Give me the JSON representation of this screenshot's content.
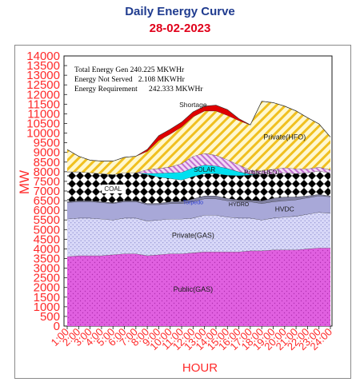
{
  "header": {
    "title": "Daily Energy Curve",
    "date": "28-02-2023"
  },
  "summary": [
    "Total Energy Gen 240.225 MKWHr",
    "Energy Not Served   2.108 MKWHr",
    "Energy Requirement      242.333 MKWHr"
  ],
  "chart_data": {
    "type": "area",
    "stacked": true,
    "xlabel": "HOUR",
    "ylabel": "MW",
    "ylim": [
      0,
      14000
    ],
    "yticks": [
      0,
      500,
      1000,
      1500,
      2000,
      2500,
      3000,
      3500,
      4000,
      4500,
      5000,
      5500,
      6000,
      6500,
      7000,
      7500,
      8000,
      8500,
      9000,
      9500,
      10000,
      10500,
      11000,
      11500,
      12000,
      12500,
      13000,
      13500,
      14000
    ],
    "grid": false,
    "x": [
      "1:00",
      "2:00",
      "3:00",
      "4:00",
      "5:00",
      "6:00",
      "7:00",
      "8:00",
      "9:00",
      "10:00",
      "11:00",
      "12:00",
      "13:00",
      "14:00",
      "15:00",
      "16:00",
      "17:00",
      "18:00",
      "19:00",
      "20:00",
      "21:00",
      "22:00",
      "23:00",
      "24:00"
    ],
    "series": [
      {
        "name": "Public(GAS)",
        "fill": "#e060e0",
        "pattern": "dots",
        "values": [
          3600,
          3650,
          3650,
          3650,
          3700,
          3750,
          3750,
          3650,
          3700,
          3750,
          3750,
          3800,
          3850,
          3850,
          3850,
          3850,
          3900,
          3900,
          3950,
          3950,
          3950,
          4000,
          4050,
          4050
        ]
      },
      {
        "name": "Private(GAS)",
        "fill": "#c8c8f8",
        "pattern": "dots",
        "values": [
          1950,
          1950,
          1950,
          1900,
          1800,
          1850,
          1850,
          1800,
          1800,
          1800,
          1800,
          1800,
          1900,
          1900,
          1800,
          1750,
          1700,
          1600,
          1650,
          1700,
          1750,
          1800,
          1850,
          1800
        ]
      },
      {
        "name": "HVDC",
        "fill": "#a8a8d8",
        "pattern": "solid",
        "values": [
          850,
          850,
          850,
          850,
          850,
          850,
          850,
          850,
          800,
          800,
          800,
          850,
          850,
          850,
          850,
          850,
          850,
          850,
          850,
          850,
          850,
          850,
          850,
          850
        ]
      },
      {
        "name": "HYDRO",
        "fill": "#7f7fa0",
        "pattern": "solid",
        "values": [
          50,
          50,
          50,
          50,
          50,
          50,
          50,
          60,
          70,
          100,
          120,
          150,
          150,
          150,
          120,
          100,
          80,
          150,
          180,
          200,
          150,
          100,
          80,
          50
        ]
      },
      {
        "name": "Torpedo",
        "fill": "#ffffff",
        "pattern": "solid",
        "values": [
          0,
          0,
          0,
          0,
          0,
          0,
          0,
          0,
          0,
          0,
          0,
          0,
          0,
          0,
          0,
          0,
          0,
          0,
          0,
          0,
          0,
          0,
          0,
          0
        ]
      },
      {
        "name": "COAL",
        "fill": "#000000",
        "pattern": "diamonds",
        "values": [
          1550,
          1500,
          1450,
          1450,
          1450,
          1450,
          1450,
          1500,
          1350,
          1200,
          1100,
          1150,
          1150,
          1150,
          1200,
          1250,
          1300,
          1400,
          1250,
          1250,
          1200,
          1200,
          1200,
          1200
        ]
      },
      {
        "name": "SOLAR",
        "fill": "#00e0f0",
        "pattern": "solid",
        "values": [
          0,
          0,
          0,
          0,
          0,
          0,
          0,
          50,
          200,
          300,
          400,
          450,
          450,
          400,
          350,
          200,
          50,
          0,
          0,
          0,
          0,
          0,
          0,
          0
        ]
      },
      {
        "name": "Public(HFO)",
        "fill": "#e8b0f0",
        "pattern": "hatch",
        "values": [
          0,
          0,
          0,
          0,
          0,
          0,
          0,
          200,
          250,
          300,
          450,
          600,
          600,
          550,
          450,
          350,
          200,
          150,
          250,
          250,
          250,
          200,
          200,
          150
        ]
      },
      {
        "name": "Private(HFO)",
        "fill": "#f0d030",
        "pattern": "hatch",
        "values": [
          1150,
          800,
          650,
          650,
          700,
          800,
          850,
          950,
          1450,
          1700,
          1900,
          2050,
          2200,
          2300,
          2300,
          2300,
          2350,
          3600,
          3450,
          3200,
          3000,
          2650,
          2250,
          1700
        ]
      },
      {
        "name": "Shortage",
        "fill": "#e00000",
        "pattern": "solid",
        "values": [
          0,
          0,
          0,
          0,
          0,
          0,
          0,
          100,
          250,
          250,
          250,
          250,
          250,
          300,
          300,
          100,
          0,
          0,
          0,
          0,
          0,
          0,
          0,
          0
        ]
      }
    ],
    "labels": [
      {
        "text": "Shortage",
        "series": "Shortage"
      },
      {
        "text": "Private(HFO)",
        "series": "Private(HFO)"
      },
      {
        "text": "SOLAR",
        "series": "SOLAR"
      },
      {
        "text": "Public(HFO)",
        "series": "Public(HFO)"
      },
      {
        "text": "COAL",
        "series": "COAL"
      },
      {
        "text": "Torpedo",
        "series": "Torpedo"
      },
      {
        "text": "HYDRO",
        "series": "HYDRO"
      },
      {
        "text": "HVDC",
        "series": "HVDC"
      },
      {
        "text": "Private(GAS)",
        "series": "Private(GAS)"
      },
      {
        "text": "Public(GAS)",
        "series": "Public(GAS)"
      }
    ],
    "colors": {
      "axis_labels": "#ff2a2a",
      "plot_bg": "#ffffff",
      "plot_border": "#1a1a1a",
      "outer_border": "#3a8a2a"
    }
  }
}
